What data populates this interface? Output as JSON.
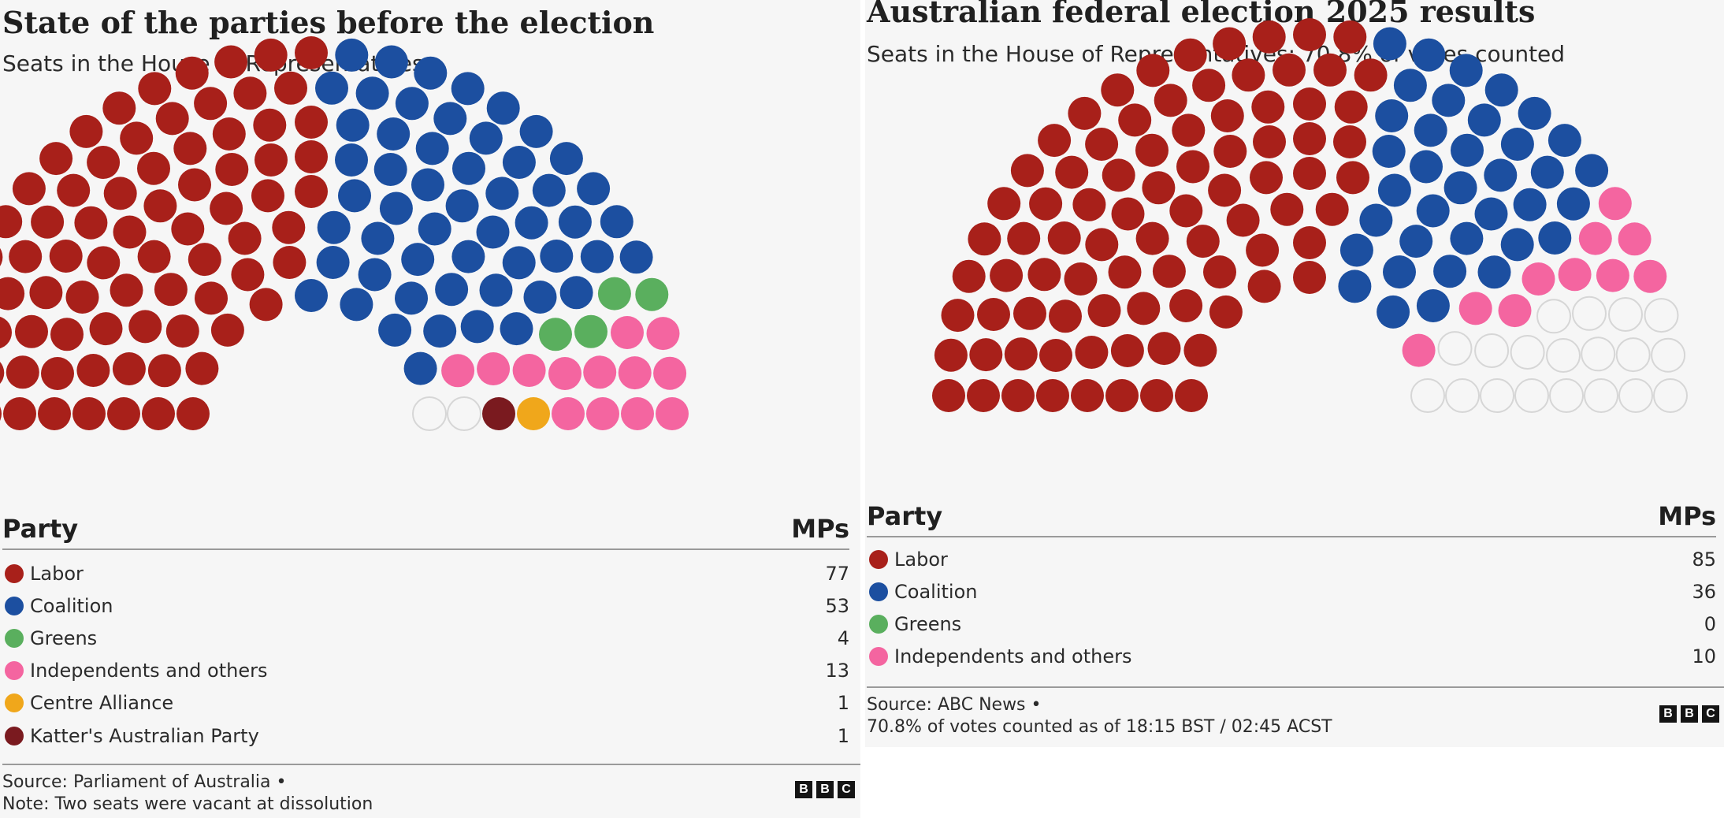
{
  "left": {
    "title": "State of the parties before the election",
    "subtitle": "Seats in the House of Representatives",
    "legend_header": {
      "party": "Party",
      "mps": "MPs"
    },
    "legend": [
      {
        "name": "Labor",
        "value": "77",
        "color": "#a8201a"
      },
      {
        "name": "Coalition",
        "value": "53",
        "color": "#1c4fa0"
      },
      {
        "name": "Greens",
        "value": "4",
        "color": "#5aaf5e"
      },
      {
        "name": "Independents and others",
        "value": "13",
        "color": "#f465a0"
      },
      {
        "name": "Centre Alliance",
        "value": "1",
        "color": "#f0a71b"
      },
      {
        "name": "Katter's Australian Party",
        "value": "1",
        "color": "#7a1a1f"
      }
    ],
    "source": "Source: Parliament of Australia •",
    "note": "Note: Two seats were vacant at dissolution"
  },
  "right": {
    "title": "Australian federal election 2025 results",
    "subtitle": "Seats in the House of Representatives: 70.8% of votes counted",
    "legend_header": {
      "party": "Party",
      "mps": "MPs"
    },
    "legend": [
      {
        "name": "Labor",
        "value": "85",
        "color": "#a8201a"
      },
      {
        "name": "Coalition",
        "value": "36",
        "color": "#1c4fa0"
      },
      {
        "name": "Greens",
        "value": "0",
        "color": "#5aaf5e"
      },
      {
        "name": "Independents and others",
        "value": "10",
        "color": "#f465a0"
      }
    ],
    "source": "Source: ABC News •",
    "note": "70.8% of votes counted as of 18:15 BST / 02:45 ACST"
  },
  "bbc_logo": [
    "B",
    "B",
    "C"
  ],
  "colors": {
    "labor": "#a8201a",
    "coalition": "#1c4fa0",
    "greens": "#5aaf5e",
    "independents": "#f465a0",
    "centre_alliance": "#f0a71b",
    "katter": "#7a1a1f",
    "vacant_fill": "#f6f6f6",
    "vacant_stroke": "#d6d6d6"
  },
  "chart_data": [
    {
      "type": "parliament",
      "title": "State of the parties before the election",
      "subtitle": "Seats in the House of Representatives",
      "total_seats": 151,
      "series": [
        {
          "name": "Labor",
          "value": 77,
          "color": "#a8201a"
        },
        {
          "name": "Coalition",
          "value": 53,
          "color": "#1c4fa0"
        },
        {
          "name": "Greens",
          "value": 4,
          "color": "#5aaf5e"
        },
        {
          "name": "Independents and others",
          "value": 13,
          "color": "#f465a0"
        },
        {
          "name": "Centre Alliance",
          "value": 1,
          "color": "#f0a71b"
        },
        {
          "name": "Katter's Australian Party",
          "value": 1,
          "color": "#7a1a1f"
        }
      ],
      "unfilled_seats": 2
    },
    {
      "type": "parliament",
      "title": "Australian federal election 2025 results",
      "subtitle": "Seats in the House of Representatives: 70.8% of votes counted",
      "total_seats": 150,
      "series": [
        {
          "name": "Labor",
          "value": 85,
          "color": "#a8201a"
        },
        {
          "name": "Coalition",
          "value": 36,
          "color": "#1c4fa0"
        },
        {
          "name": "Greens",
          "value": 0,
          "color": "#5aaf5e"
        },
        {
          "name": "Independents and others",
          "value": 10,
          "color": "#f465a0"
        }
      ],
      "unfilled_seats": 19
    }
  ]
}
